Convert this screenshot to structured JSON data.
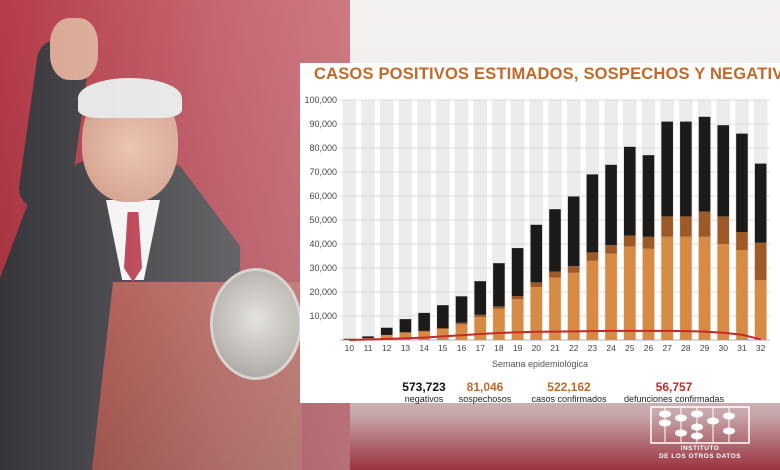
{
  "chart_data": {
    "type": "bar",
    "title": "CASOS POSITIVOS ESTIMADOS, SOSPECHOS Y NEGATIVOS",
    "xlabel": "Semana epidemiológica",
    "ylabel": "",
    "ylim": [
      0,
      100000
    ],
    "yticks": [
      "100,000",
      "90,000",
      "80,000",
      "70,000",
      "60,000",
      "50,000",
      "40,000",
      "30,000",
      "20,000",
      "10,000"
    ],
    "categories": [
      "10",
      "11",
      "12",
      "13",
      "14",
      "15",
      "16",
      "17",
      "18",
      "19",
      "20",
      "21",
      "22",
      "23",
      "24",
      "25",
      "26",
      "27",
      "28",
      "29",
      "30",
      "31",
      "32"
    ],
    "stacked": true,
    "series": [
      {
        "key": "confirmados",
        "color": "#d68a44",
        "values": [
          200,
          800,
          2000,
          3000,
          3500,
          4500,
          6500,
          9500,
          13000,
          17000,
          22000,
          26000,
          28000,
          33000,
          36000,
          39000,
          38000,
          43000,
          43000,
          43000,
          40000,
          37500,
          25000
        ]
      },
      {
        "key": "sospechosos",
        "color": "#9e5a26",
        "values": [
          0,
          0,
          100,
          200,
          300,
          500,
          700,
          1000,
          1000,
          1300,
          2000,
          2500,
          2800,
          3500,
          3500,
          4500,
          5000,
          8500,
          8500,
          10500,
          11500,
          7500,
          15500
        ]
      },
      {
        "key": "negativos",
        "color": "#1d1a1a",
        "values": [
          300,
          700,
          3000,
          5500,
          7500,
          9500,
          11000,
          14000,
          18000,
          20000,
          24000,
          26000,
          29000,
          32500,
          33500,
          37000,
          34000,
          39500,
          39500,
          39500,
          38000,
          41000,
          33000
        ]
      }
    ],
    "line_series": {
      "key": "defunciones",
      "color": "#c42a2a",
      "values": [
        0,
        200,
        400,
        700,
        1000,
        1500,
        2000,
        2500,
        2900,
        3200,
        3400,
        3500,
        3600,
        3700,
        3800,
        3800,
        3800,
        3800,
        3700,
        3500,
        3000,
        2200,
        300
      ]
    },
    "grid": true
  },
  "stats": [
    {
      "value": "573,723",
      "label": "negativos",
      "color": "#111111"
    },
    {
      "value": "81,046",
      "label": "sospechosos",
      "color": "#c2692a"
    },
    {
      "value": "522,162",
      "label": "casos confirmados",
      "color": "#c2692a"
    },
    {
      "value": "56,757",
      "label": "defunciones confirmadas",
      "color": "#c42a2a"
    }
  ],
  "logo": {
    "line1": "INSTITUTO",
    "line2": "DE LOS OTROS DATOS"
  }
}
